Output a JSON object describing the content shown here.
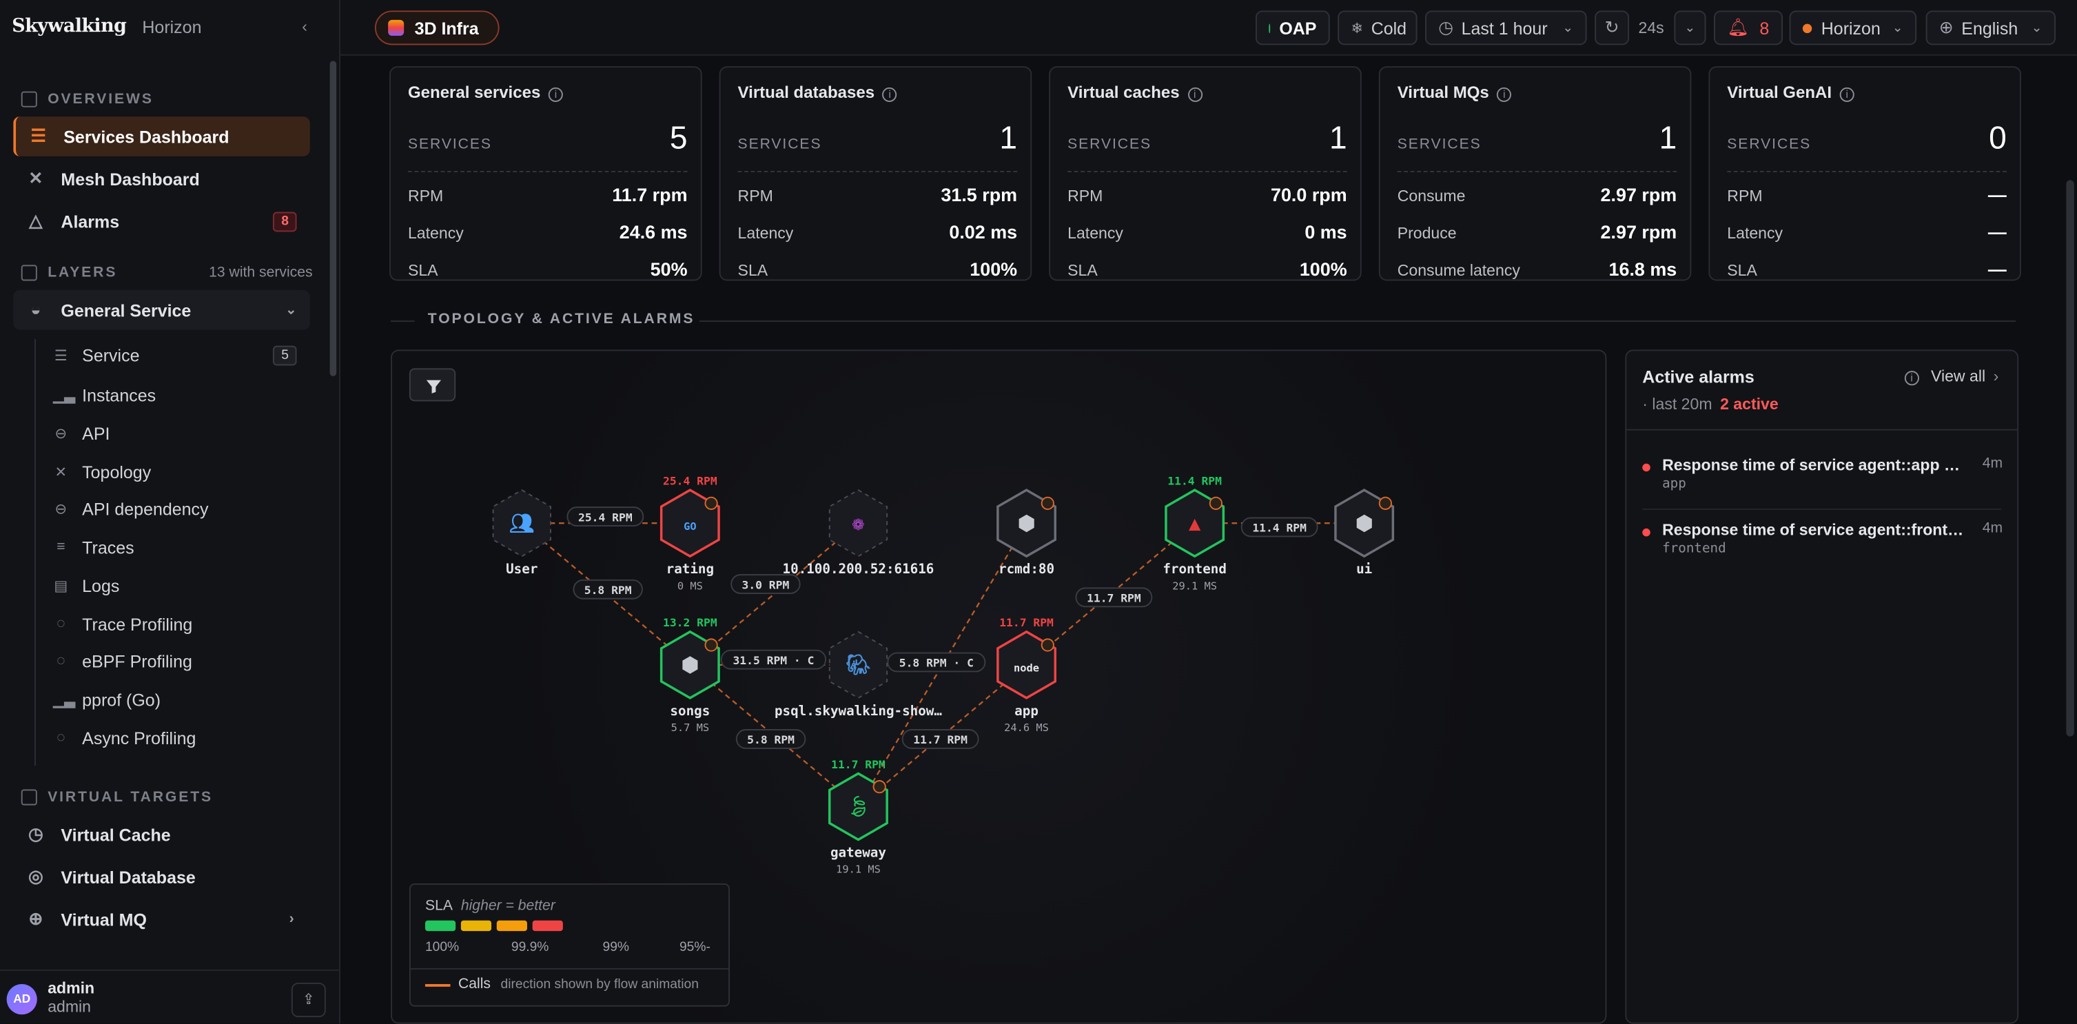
{
  "brand": {
    "logo": "Skywalking",
    "name": "Horizon"
  },
  "sidebar": {
    "overviews_label": "OVERVIEWS",
    "overviews": [
      {
        "label": "Services Dashboard",
        "icon": "dashboard-icon",
        "active": true
      },
      {
        "label": "Mesh Dashboard",
        "icon": "mesh-icon"
      },
      {
        "label": "Alarms",
        "icon": "alert-triangle-icon",
        "badge": "8"
      }
    ],
    "layers_label": "LAYERS",
    "layers_count": "13 with services",
    "layer": {
      "label": "General Service"
    },
    "layer_items": [
      {
        "label": "Service",
        "badge": "5"
      },
      {
        "label": "Instances"
      },
      {
        "label": "API"
      },
      {
        "label": "Topology"
      },
      {
        "label": "API dependency"
      },
      {
        "label": "Traces"
      },
      {
        "label": "Logs"
      },
      {
        "label": "Trace Profiling"
      },
      {
        "label": "eBPF Profiling"
      },
      {
        "label": "pprof (Go)"
      },
      {
        "label": "Async Profiling"
      }
    ],
    "virtual_label": "VIRTUAL TARGETS",
    "virtual": [
      {
        "label": "Virtual Cache"
      },
      {
        "label": "Virtual Database"
      },
      {
        "label": "Virtual MQ"
      }
    ],
    "user": {
      "initials": "AD",
      "name": "admin",
      "role": "admin"
    }
  },
  "topbar": {
    "layer_button": "3D Infra",
    "oap": "OAP",
    "cold": "Cold",
    "time_range": "Last 1 hour",
    "refresh": "24s",
    "alarm_count": "8",
    "theme": "Horizon",
    "language": "English"
  },
  "cards": [
    {
      "title": "General services",
      "count_label": "SERVICES",
      "count": "5",
      "rows": [
        {
          "label": "RPM",
          "value": "11.7 rpm"
        },
        {
          "label": "Latency",
          "value": "24.6 ms"
        },
        {
          "label": "SLA",
          "value": "50%"
        }
      ]
    },
    {
      "title": "Virtual databases",
      "count_label": "SERVICES",
      "count": "1",
      "rows": [
        {
          "label": "RPM",
          "value": "31.5 rpm"
        },
        {
          "label": "Latency",
          "value": "0.02 ms"
        },
        {
          "label": "SLA",
          "value": "100%"
        }
      ]
    },
    {
      "title": "Virtual caches",
      "count_label": "SERVICES",
      "count": "1",
      "rows": [
        {
          "label": "RPM",
          "value": "70.0 rpm"
        },
        {
          "label": "Latency",
          "value": "0 ms"
        },
        {
          "label": "SLA",
          "value": "100%"
        }
      ]
    },
    {
      "title": "Virtual MQs",
      "count_label": "SERVICES",
      "count": "1",
      "rows": [
        {
          "label": "Consume",
          "value": "2.97 rpm"
        },
        {
          "label": "Produce",
          "value": "2.97 rpm"
        },
        {
          "label": "Consume latency",
          "value": "16.8 ms"
        }
      ]
    },
    {
      "title": "Virtual GenAI",
      "count_label": "SERVICES",
      "count": "0",
      "rows": [
        {
          "label": "RPM",
          "value": "—"
        },
        {
          "label": "Latency",
          "value": "—"
        },
        {
          "label": "SLA",
          "value": "—"
        }
      ]
    }
  ],
  "topology": {
    "section_title": "TOPOLOGY & ACTIVE ALARMS",
    "nodes": [
      {
        "id": "user",
        "label": "User",
        "sub": "",
        "rpm": "",
        "status": "none",
        "icon": "users-icon"
      },
      {
        "id": "rating",
        "label": "rating",
        "sub": "0 MS",
        "rpm": "25.4 RPM",
        "status": "bad",
        "icon": "go-icon"
      },
      {
        "id": "ip",
        "label": "10.100.200.52:61616",
        "sub": "",
        "rpm": "",
        "status": "none",
        "icon": "activemq-icon"
      },
      {
        "id": "rcmd",
        "label": "rcmd:80",
        "sub": "",
        "rpm": "",
        "status": "grey",
        "icon": "cube-icon"
      },
      {
        "id": "frontend",
        "label": "frontend",
        "sub": "29.1 MS",
        "rpm": "11.4 RPM",
        "status": "good",
        "icon": "angular-icon"
      },
      {
        "id": "ui",
        "label": "ui",
        "sub": "",
        "rpm": "",
        "status": "grey",
        "icon": "cube-icon"
      },
      {
        "id": "songs",
        "label": "songs",
        "sub": "5.7 MS",
        "rpm": "13.2 RPM",
        "status": "good",
        "icon": "cube-icon"
      },
      {
        "id": "psql",
        "label": "psql.skywalking-show…",
        "sub": "",
        "rpm": "",
        "status": "none",
        "icon": "postgres-icon"
      },
      {
        "id": "app",
        "label": "app",
        "sub": "24.6 MS",
        "rpm": "11.7 RPM",
        "status": "bad",
        "icon": "node-icon"
      },
      {
        "id": "gateway",
        "label": "gateway",
        "sub": "19.1 MS",
        "rpm": "11.7 RPM",
        "status": "good",
        "icon": "spring-icon"
      }
    ],
    "edges": [
      {
        "from": "user",
        "to": "rating",
        "label": "25.4 RPM"
      },
      {
        "from": "user",
        "to": "songs",
        "label": "5.8 RPM"
      },
      {
        "from": "songs",
        "to": "ip",
        "label": "3.0 RPM"
      },
      {
        "from": "songs",
        "to": "psql",
        "label": "31.5 RPM · C"
      },
      {
        "from": "songs",
        "to": "gateway",
        "label": "5.8 RPM"
      },
      {
        "from": "gateway",
        "to": "rcmd",
        "label": "5.8 RPM · C"
      },
      {
        "from": "gateway",
        "to": "app",
        "label": "11.7 RPM"
      },
      {
        "from": "app",
        "to": "frontend",
        "label": "11.7 RPM"
      },
      {
        "from": "frontend",
        "to": "ui",
        "label": "11.4 RPM"
      }
    ],
    "legend": {
      "title": "SLA",
      "hint": "higher = better",
      "stops": [
        "100%",
        "99.9%",
        "99%",
        "95%-"
      ],
      "colors": [
        "#22c55e",
        "#eab308",
        "#f59e0b",
        "#ef4444"
      ],
      "calls_label": "Calls",
      "calls_hint": "direction shown by flow animation"
    }
  },
  "alarms": {
    "title": "Active alarms",
    "window": "· last 20m",
    "active": "2 active",
    "view_all": "View all",
    "items": [
      {
        "text": "Response time of service agent::app is …",
        "service": "app",
        "time": "4m"
      },
      {
        "text": "Response time of service agent::fronte…",
        "service": "frontend",
        "time": "4m"
      }
    ]
  },
  "colors": {
    "accent": "#f0782a",
    "good": "#22c55e",
    "bad": "#ef4444"
  }
}
